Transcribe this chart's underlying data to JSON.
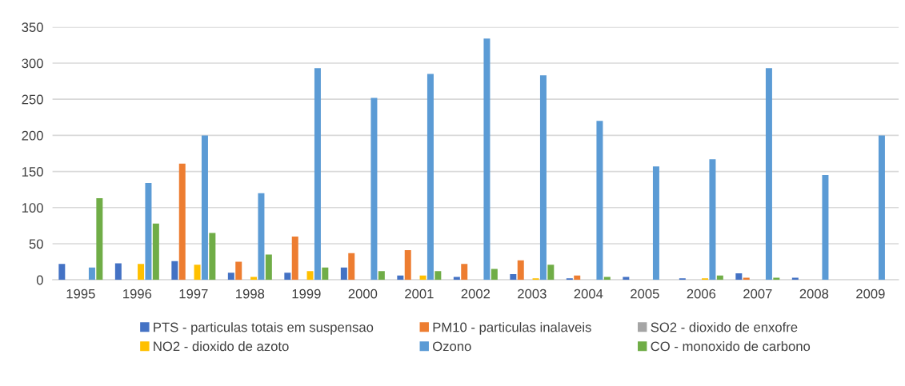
{
  "chart_data": {
    "type": "bar",
    "categories": [
      "1995",
      "1996",
      "1997",
      "1998",
      "1999",
      "2000",
      "2001",
      "2002",
      "2003",
      "2004",
      "2005",
      "2006",
      "2007",
      "2008",
      "2009"
    ],
    "series": [
      {
        "name": "PTS - particulas totais em suspensao",
        "color": "#4472c4",
        "values": [
          22,
          23,
          26,
          10,
          10,
          17,
          6,
          4,
          8,
          2,
          4,
          2,
          9,
          3,
          0
        ]
      },
      {
        "name": "PM10 - particulas inalaveis",
        "color": "#ed7d31",
        "values": [
          0,
          0,
          161,
          25,
          60,
          37,
          41,
          22,
          27,
          6,
          0,
          0,
          3,
          0,
          0
        ]
      },
      {
        "name": "SO2 - dioxido de enxofre",
        "color": "#a5a5a5",
        "values": [
          0,
          0,
          0,
          0,
          0,
          0,
          0,
          0,
          0,
          0,
          0,
          0,
          0,
          0,
          0
        ]
      },
      {
        "name": "NO2 - dioxido de azoto",
        "color": "#ffc000",
        "values": [
          0,
          22,
          21,
          4,
          12,
          0,
          6,
          0,
          2,
          0,
          0,
          2,
          0,
          0,
          0
        ]
      },
      {
        "name": "Ozono",
        "color": "#5b9bd5",
        "values": [
          17,
          134,
          200,
          120,
          293,
          252,
          285,
          334,
          283,
          220,
          157,
          167,
          293,
          145,
          200
        ]
      },
      {
        "name": "CO - monoxido de carbono",
        "color": "#70ad47",
        "values": [
          113,
          78,
          65,
          35,
          17,
          12,
          12,
          15,
          21,
          4,
          0,
          6,
          3,
          0,
          0
        ]
      }
    ],
    "ylim": [
      0,
      350
    ],
    "yticks": [
      0,
      50,
      100,
      150,
      200,
      250,
      300,
      350
    ],
    "grid": "y",
    "legend": "bottom"
  }
}
